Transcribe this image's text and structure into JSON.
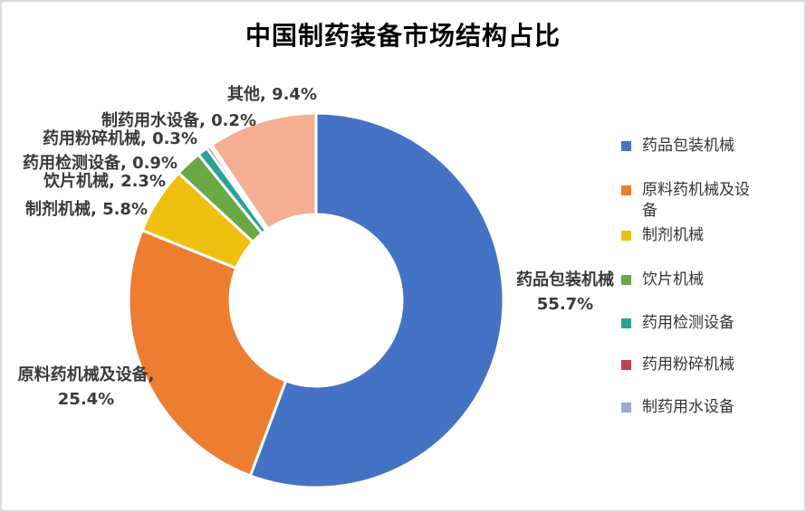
{
  "title": "中国制药装备市场结构占比",
  "chart_data": {
    "type": "pie",
    "subtype": "donut",
    "title": "中国制药装备市场结构占比",
    "unit": "%",
    "categories": [
      "药品包装机械",
      "原料药机械及设备",
      "制剂机械",
      "饮片机械",
      "药用检测设备",
      "药用粉碎机械",
      "制药用水设备",
      "其他"
    ],
    "values": [
      55.7,
      25.4,
      5.8,
      2.3,
      0.9,
      0.3,
      0.2,
      9.4
    ],
    "colors": [
      "#4472C4",
      "#ED7D31",
      "#F0C011",
      "#68A943",
      "#2AA296",
      "#C04450",
      "#97A9D7",
      "#F4AE92"
    ],
    "start_angle_deg": 0,
    "direction": "clockwise",
    "donut_hole_ratio": 0.46,
    "slice_border_color": "#FFFFFF",
    "legend_position": "right",
    "grid": false
  },
  "legend": {
    "items": [
      {
        "label": "药品包装机械",
        "color": "#4472C4"
      },
      {
        "label": "原料药机械及设备",
        "color": "#ED7D31"
      },
      {
        "label": "制剂机械",
        "color": "#F0C011"
      },
      {
        "label": "饮片机械",
        "color": "#68A943"
      },
      {
        "label": "药用检测设备",
        "color": "#2AA296"
      },
      {
        "label": "药用粉碎机械",
        "color": "#C04450"
      },
      {
        "label": "制药用水设备",
        "color": "#97A9D7"
      }
    ]
  },
  "data_labels": {
    "others": "其他, 9.4%",
    "water_equipment": "制药用水设备, 0.2%",
    "crushing_machinery": "药用粉碎机械, 0.3%",
    "testing_equipment": "药用检测设备, 0.9%",
    "decoction_machinery": "饮片机械, 2.3%",
    "preparation_machinery": "制剂机械, 5.8%",
    "packaging_name": "药品包装机械",
    "packaging_value": "55.7%",
    "raw_material_name": "原料药机械及设备,",
    "raw_material_value": "25.4%"
  }
}
